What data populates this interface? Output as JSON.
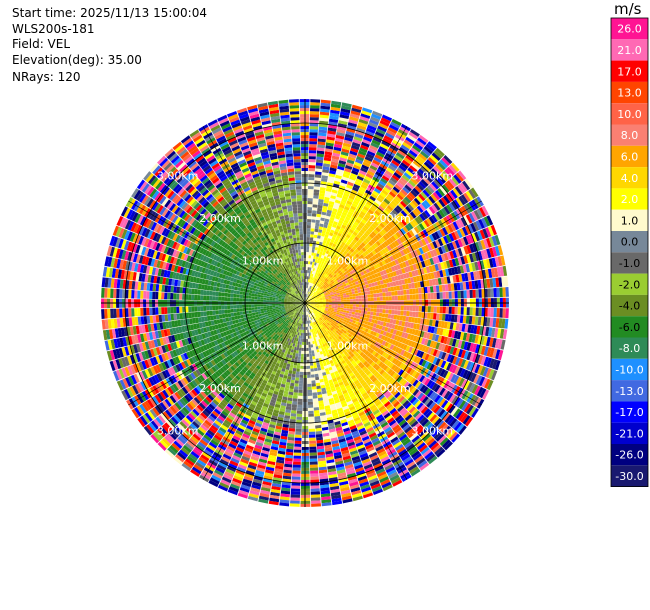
{
  "header": {
    "start_time": "Start time: 2025/11/13 15:00:04",
    "instrument": "WLS200s-181",
    "field": "Field: VEL",
    "elevation": "Elevation(deg): 35.00",
    "nrays": "NRays: 120"
  },
  "colorbar": {
    "unit": "m/s",
    "bins": [
      {
        "label": "26.0",
        "color": "#ff1493"
      },
      {
        "label": "21.0",
        "color": "#ff69b4"
      },
      {
        "label": "17.0",
        "color": "#ff0000"
      },
      {
        "label": "13.0",
        "color": "#ff4500"
      },
      {
        "label": "10.0",
        "color": "#ff6347"
      },
      {
        "label": "8.0",
        "color": "#fa8072"
      },
      {
        "label": "6.0",
        "color": "#ffa500"
      },
      {
        "label": "4.0",
        "color": "#ffd700"
      },
      {
        "label": "2.0",
        "color": "#ffff00"
      },
      {
        "label": "1.0",
        "color": "#fffacd"
      },
      {
        "label": "0.0",
        "color": "#778899"
      },
      {
        "label": "-1.0",
        "color": "#696969"
      },
      {
        "label": "-2.0",
        "color": "#9acd32"
      },
      {
        "label": "-4.0",
        "color": "#6b8e23"
      },
      {
        "label": "-6.0",
        "color": "#228b22"
      },
      {
        "label": "-8.0",
        "color": "#2e8b57"
      },
      {
        "label": "-10.0",
        "color": "#1e90ff"
      },
      {
        "label": "-13.0",
        "color": "#4169e1"
      },
      {
        "label": "-17.0",
        "color": "#0000ff"
      },
      {
        "label": "-21.0",
        "color": "#0000cd"
      },
      {
        "label": "-26.0",
        "color": "#000080"
      },
      {
        "label": "-30.0",
        "color": "#191970"
      }
    ]
  },
  "chart_data": {
    "type": "heatmap",
    "projection": "polar PPI",
    "field": "VEL",
    "unit": "m/s",
    "nrays": 120,
    "max_range_km": 3.4,
    "range_rings_km": [
      1.0,
      2.0,
      3.0
    ],
    "ring_labels": [
      "1.00km",
      "2.00km",
      "3.00km"
    ],
    "spoke_angles_deg": [
      0,
      30,
      60,
      90,
      120,
      150,
      180,
      210,
      240,
      270,
      300,
      330
    ],
    "description_of_pattern": {
      "near_field_range_km": [
        0,
        2.2
      ],
      "east_side_velocity_ms": 8.0,
      "west_side_velocity_ms": -6.0,
      "far_field": "noise"
    }
  }
}
